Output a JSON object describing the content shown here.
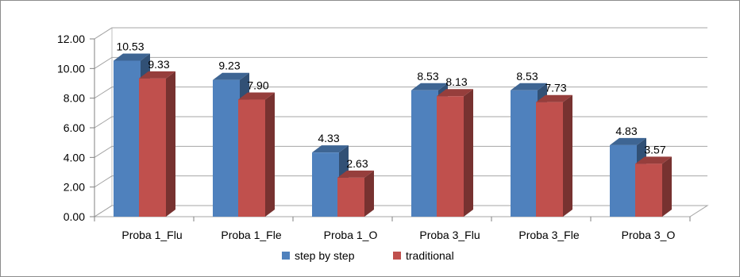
{
  "chart_data": {
    "type": "bar",
    "title": "",
    "xlabel": "",
    "ylabel": "",
    "categories": [
      "Proba 1_Flu",
      "Proba 1_Fle",
      "Proba 1_O",
      "Proba 3_Flu",
      "Proba 3_Fle",
      "Proba 3_O"
    ],
    "series": [
      {
        "name": "step by step",
        "values": [
          10.53,
          9.23,
          4.33,
          8.53,
          8.53,
          4.83
        ],
        "labels": [
          "10.53",
          "9.23",
          "4.33",
          "8.53",
          "8.53",
          "4.83"
        ],
        "color": "#4F81BD"
      },
      {
        "name": "traditional",
        "values": [
          9.33,
          7.9,
          2.63,
          8.13,
          7.73,
          3.57
        ],
        "labels": [
          "9.33",
          "7.90",
          "2.63",
          "8.13",
          "7.73",
          "3.57"
        ],
        "color": "#C0504D"
      }
    ],
    "ylim": [
      0,
      12
    ],
    "yticks": [
      "0.00",
      "2.00",
      "4.00",
      "6.00",
      "8.00",
      "10.00",
      "12.00"
    ],
    "grid": true,
    "legend_position": "bottom",
    "style": "3d-clustered-column"
  }
}
